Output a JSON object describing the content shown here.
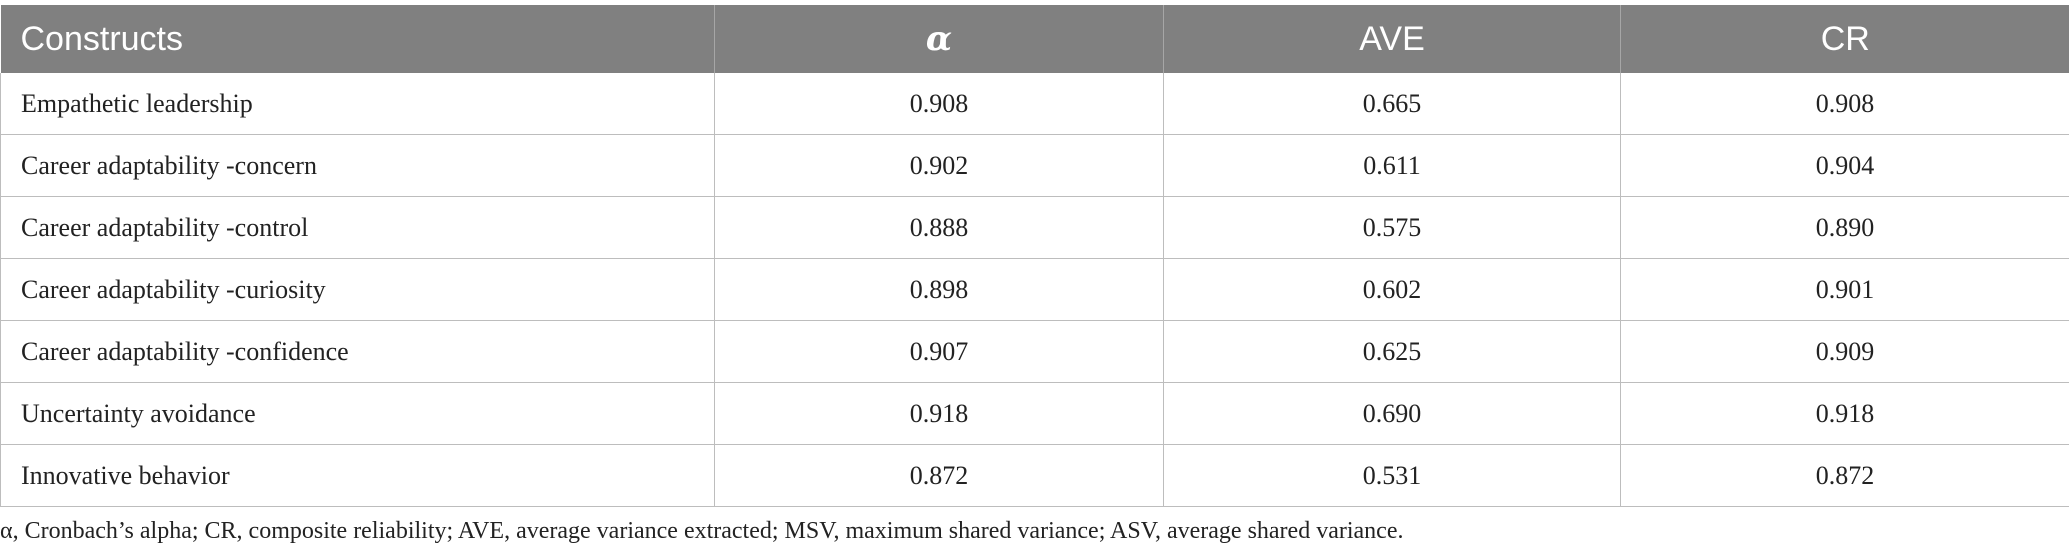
{
  "table": {
    "headers": [
      "Constructs",
      "α",
      "AVE",
      "CR"
    ],
    "rows": [
      [
        "Empathetic leadership",
        "0.908",
        "0.665",
        "0.908"
      ],
      [
        "Career adaptability -concern",
        "0.902",
        "0.611",
        "0.904"
      ],
      [
        "Career adaptability -control",
        "0.888",
        "0.575",
        "0.890"
      ],
      [
        "Career adaptability -curiosity",
        "0.898",
        "0.602",
        "0.901"
      ],
      [
        "Career adaptability -confidence",
        "0.907",
        "0.625",
        "0.909"
      ],
      [
        "Uncertainty avoidance",
        "0.918",
        "0.690",
        "0.918"
      ],
      [
        "Innovative behavior",
        "0.872",
        "0.531",
        "0.872"
      ]
    ]
  },
  "footnote": "α, Cronbach’s alpha; CR, composite reliability; AVE, average variance extracted; MSV, maximum shared variance; ASV, average shared variance.",
  "colors": {
    "header_bg": "#808080",
    "header_text": "#ffffff",
    "grid": "#bdbdbd",
    "text": "#222222"
  }
}
